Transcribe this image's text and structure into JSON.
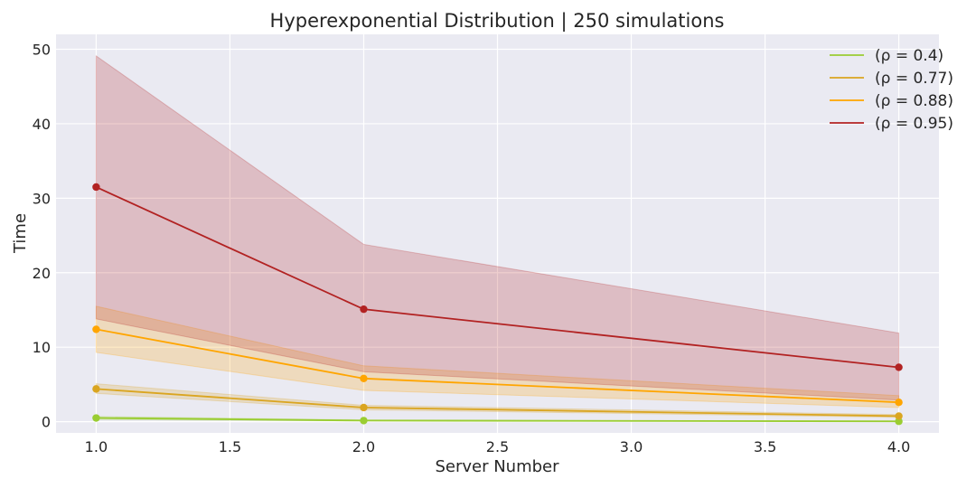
{
  "chart_data": {
    "type": "line",
    "title": "Hyperexponential Distribution | 250 simulations",
    "xlabel": "Server Number",
    "ylabel": "Time",
    "x": [
      1.0,
      2.0,
      4.0
    ],
    "xlim": [
      0.85,
      4.15
    ],
    "ylim": [
      -1.5,
      52.0
    ],
    "xticks": [
      1.0,
      1.5,
      2.0,
      2.5,
      3.0,
      3.5,
      4.0
    ],
    "xtick_labels": [
      "1.0",
      "1.5",
      "2.0",
      "2.5",
      "3.0",
      "3.5",
      "4.0"
    ],
    "yticks": [
      0,
      10,
      20,
      30,
      40,
      50
    ],
    "ytick_labels": [
      "0",
      "10",
      "20",
      "30",
      "40",
      "50"
    ],
    "grid": true,
    "legend_position": "top-right",
    "series": [
      {
        "name": "(ρ = 0.4)",
        "color": "#9acd32",
        "values": [
          0.5,
          0.15,
          0.05
        ],
        "lower": [
          0.3,
          0.1,
          0.03
        ],
        "upper": [
          0.7,
          0.25,
          0.1
        ]
      },
      {
        "name": "(ρ = 0.77)",
        "color": "#daa520",
        "values": [
          4.4,
          1.9,
          0.75
        ],
        "lower": [
          3.8,
          1.6,
          0.6
        ],
        "upper": [
          5.1,
          2.2,
          0.95
        ]
      },
      {
        "name": "(ρ = 0.88)",
        "color": "#ffa500",
        "values": [
          12.4,
          5.8,
          2.6
        ],
        "lower": [
          9.3,
          4.2,
          1.9
        ],
        "upper": [
          15.5,
          7.5,
          3.5
        ]
      },
      {
        "name": "(ρ = 0.95)",
        "color": "#b22222",
        "values": [
          31.5,
          15.1,
          7.3
        ],
        "lower": [
          13.8,
          6.7,
          2.9
        ],
        "upper": [
          49.1,
          23.8,
          11.9
        ]
      }
    ]
  }
}
